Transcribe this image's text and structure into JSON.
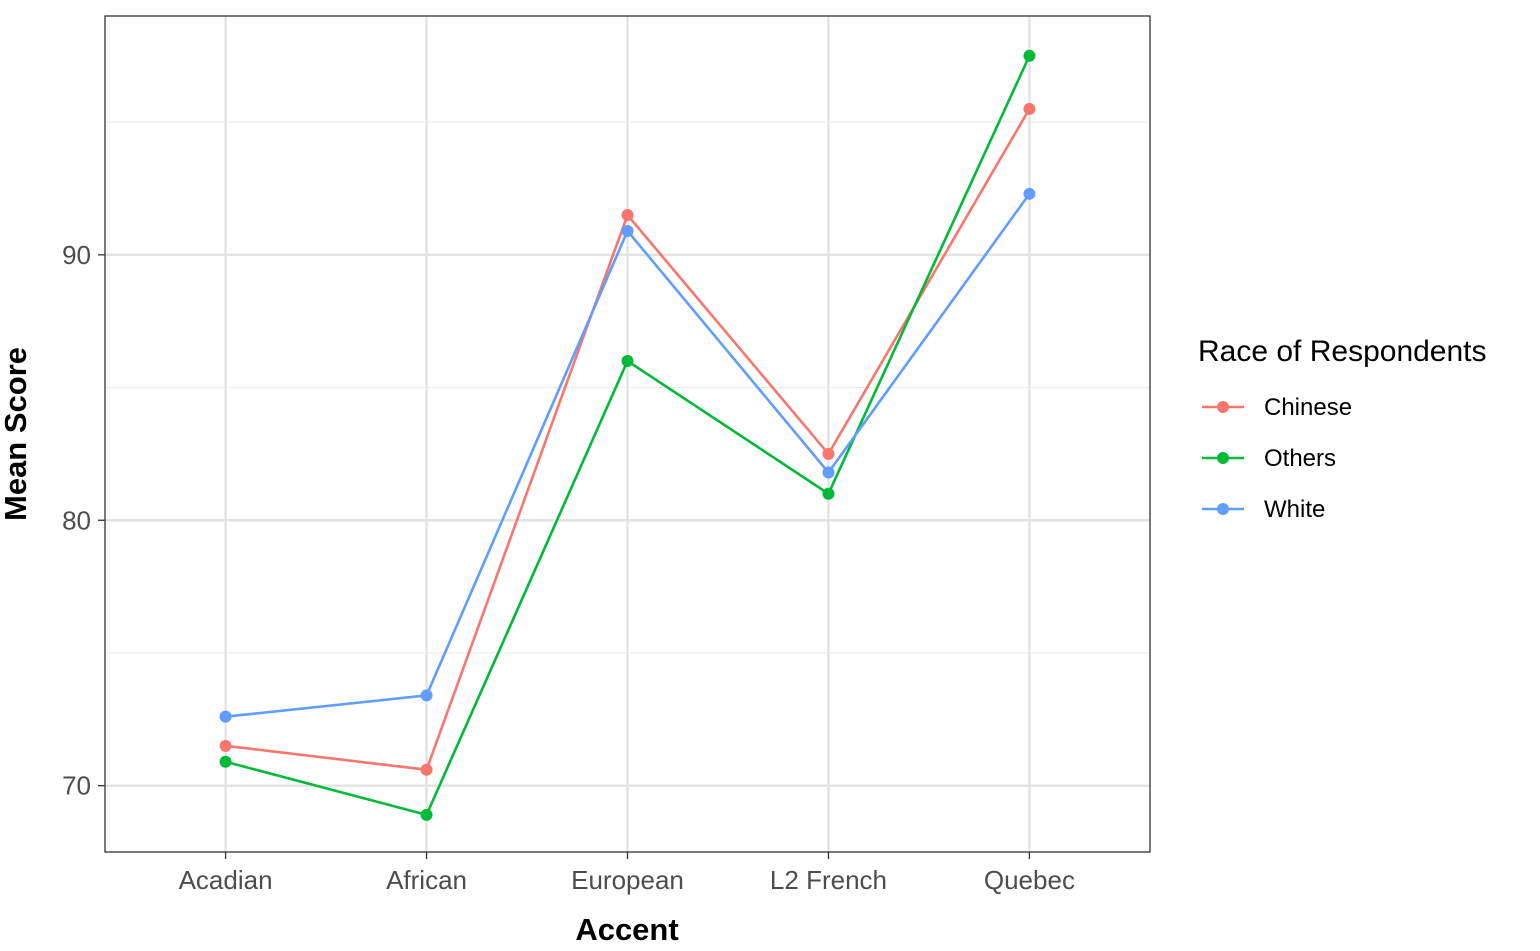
{
  "chart_data": {
    "type": "line",
    "title": "",
    "xlabel": "Accent",
    "ylabel": "Mean Score",
    "categories": [
      "Acadian",
      "African",
      "European",
      "L2 French",
      "Quebec"
    ],
    "ylim": [
      67.5,
      99.0
    ],
    "yticks": [
      70,
      80,
      90
    ],
    "y_minor_ticks": [
      75,
      85,
      95
    ],
    "grid": true,
    "legend": {
      "title": "Race of Respondents",
      "position": "right"
    },
    "series": [
      {
        "name": "Chinese",
        "color": "#F8766D",
        "values": [
          71.5,
          70.6,
          91.5,
          82.5,
          95.5
        ]
      },
      {
        "name": "Others",
        "color": "#00BA38",
        "values": [
          70.9,
          68.9,
          86.0,
          81.0,
          97.5
        ]
      },
      {
        "name": "White",
        "color": "#619CFF",
        "values": [
          72.6,
          73.4,
          90.9,
          81.8,
          92.3
        ]
      }
    ]
  }
}
